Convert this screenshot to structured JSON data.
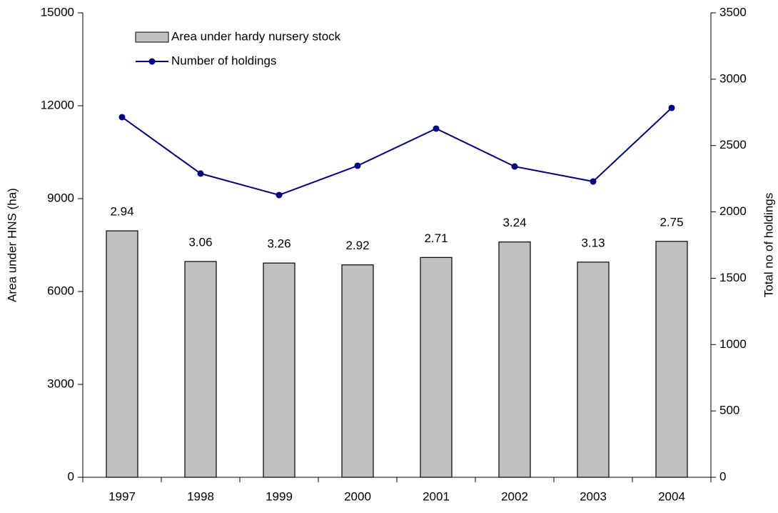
{
  "chart_data": {
    "type": "bar_line",
    "categories": [
      "1997",
      "1998",
      "1999",
      "2000",
      "2001",
      "2002",
      "2003",
      "2004"
    ],
    "series": [
      {
        "name": "Area under hardy nursery stock",
        "type": "bar",
        "color": "#c0c0c0",
        "values": [
          7960,
          6970,
          6920,
          6860,
          7100,
          7600,
          6950,
          7620
        ]
      },
      {
        "name": "Number of holdings",
        "type": "line",
        "axis": "y2",
        "color": "#000080",
        "values": [
          2714,
          2289,
          2127,
          2348,
          2628,
          2342,
          2229,
          2784
        ]
      }
    ],
    "annotations": [
      "2.94",
      "3.06",
      "3.26",
      "2.92",
      "2.71",
      "3.24",
      "3.13",
      "2.75"
    ],
    "ylabel": "Area under HNS (ha)",
    "y2label": "Total no of holdings",
    "ylim": [
      0,
      15000
    ],
    "yticks": [
      0,
      3000,
      6000,
      9000,
      12000,
      15000
    ],
    "y2lim": [
      0,
      3500
    ],
    "y2ticks": [
      0,
      500,
      1000,
      1500,
      2000,
      2500,
      3000,
      3500
    ],
    "grid": false,
    "legend": "upper left"
  }
}
